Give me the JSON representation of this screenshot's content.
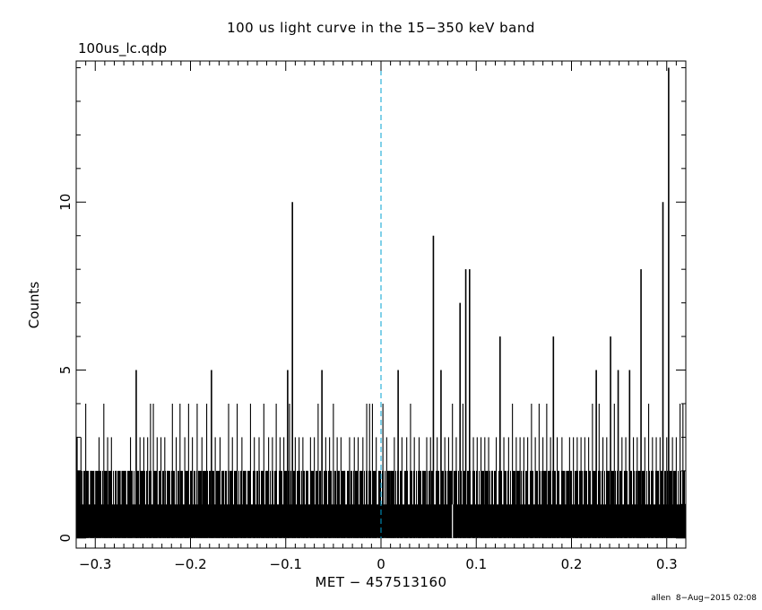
{
  "chart_data": {
    "type": "bar",
    "title": "100 us light curve in the 15−350 keV band",
    "subtitle": "100us_lc.qdp",
    "xlabel": "MET − 457513160",
    "ylabel": "Counts",
    "xlim": [
      -0.32,
      0.32
    ],
    "ylim": [
      -0.3,
      14.2
    ],
    "xticks": {
      "values": [
        -0.3,
        -0.2,
        -0.1,
        0,
        0.1,
        0.2,
        0.3
      ],
      "labels": [
        "−0.3",
        "−0.2",
        "−0.1",
        "0",
        "0.1",
        "0.2",
        "0.3"
      ]
    },
    "yticks": {
      "values": [
        0,
        5,
        10
      ],
      "labels": [
        "0",
        "5",
        "10"
      ]
    },
    "trigger_line": {
      "x": 0,
      "color": "#00a0d0",
      "style": "dashed"
    },
    "bar_color": "#000000",
    "baseline_level": 1,
    "spikes": [
      {
        "x": -0.319,
        "y": 3
      },
      {
        "x": -0.315,
        "y": 3
      },
      {
        "x": -0.31,
        "y": 4
      },
      {
        "x": -0.305,
        "y": 2
      },
      {
        "x": -0.3,
        "y": 2
      },
      {
        "x": -0.296,
        "y": 3
      },
      {
        "x": -0.291,
        "y": 4
      },
      {
        "x": -0.287,
        "y": 3
      },
      {
        "x": -0.283,
        "y": 3
      },
      {
        "x": -0.278,
        "y": 2
      },
      {
        "x": -0.273,
        "y": 2
      },
      {
        "x": -0.268,
        "y": 2
      },
      {
        "x": -0.263,
        "y": 3
      },
      {
        "x": -0.257,
        "y": 5
      },
      {
        "x": -0.253,
        "y": 3
      },
      {
        "x": -0.249,
        "y": 3
      },
      {
        "x": -0.245,
        "y": 3
      },
      {
        "x": -0.242,
        "y": 4
      },
      {
        "x": -0.239,
        "y": 4
      },
      {
        "x": -0.235,
        "y": 3
      },
      {
        "x": -0.231,
        "y": 3
      },
      {
        "x": -0.227,
        "y": 3
      },
      {
        "x": -0.224,
        "y": 2
      },
      {
        "x": -0.219,
        "y": 4
      },
      {
        "x": -0.215,
        "y": 3
      },
      {
        "x": -0.211,
        "y": 4
      },
      {
        "x": -0.206,
        "y": 3
      },
      {
        "x": -0.202,
        "y": 4
      },
      {
        "x": -0.198,
        "y": 3
      },
      {
        "x": -0.193,
        "y": 4
      },
      {
        "x": -0.188,
        "y": 3
      },
      {
        "x": -0.183,
        "y": 4
      },
      {
        "x": -0.178,
        "y": 5
      },
      {
        "x": -0.174,
        "y": 3
      },
      {
        "x": -0.169,
        "y": 3
      },
      {
        "x": -0.165,
        "y": 2
      },
      {
        "x": -0.16,
        "y": 4
      },
      {
        "x": -0.156,
        "y": 3
      },
      {
        "x": -0.151,
        "y": 4
      },
      {
        "x": -0.146,
        "y": 3
      },
      {
        "x": -0.142,
        "y": 2
      },
      {
        "x": -0.137,
        "y": 4
      },
      {
        "x": -0.133,
        "y": 3
      },
      {
        "x": -0.128,
        "y": 3
      },
      {
        "x": -0.123,
        "y": 4
      },
      {
        "x": -0.118,
        "y": 3
      },
      {
        "x": -0.114,
        "y": 3
      },
      {
        "x": -0.11,
        "y": 4
      },
      {
        "x": -0.106,
        "y": 3
      },
      {
        "x": -0.102,
        "y": 3
      },
      {
        "x": -0.098,
        "y": 5
      },
      {
        "x": -0.096,
        "y": 4
      },
      {
        "x": -0.093,
        "y": 10
      },
      {
        "x": -0.09,
        "y": 3
      },
      {
        "x": -0.086,
        "y": 3
      },
      {
        "x": -0.082,
        "y": 3
      },
      {
        "x": -0.078,
        "y": 2
      },
      {
        "x": -0.074,
        "y": 3
      },
      {
        "x": -0.07,
        "y": 3
      },
      {
        "x": -0.066,
        "y": 4
      },
      {
        "x": -0.062,
        "y": 5
      },
      {
        "x": -0.058,
        "y": 3
      },
      {
        "x": -0.054,
        "y": 3
      },
      {
        "x": -0.05,
        "y": 4
      },
      {
        "x": -0.046,
        "y": 3
      },
      {
        "x": -0.042,
        "y": 3
      },
      {
        "x": -0.038,
        "y": 2
      },
      {
        "x": -0.033,
        "y": 3
      },
      {
        "x": -0.028,
        "y": 3
      },
      {
        "x": -0.024,
        "y": 3
      },
      {
        "x": -0.019,
        "y": 3
      },
      {
        "x": -0.015,
        "y": 4
      },
      {
        "x": -0.012,
        "y": 4
      },
      {
        "x": -0.009,
        "y": 4
      },
      {
        "x": -0.005,
        "y": 3
      },
      {
        "x": 0.002,
        "y": 4
      },
      {
        "x": 0.006,
        "y": 3
      },
      {
        "x": 0.01,
        "y": 2
      },
      {
        "x": 0.014,
        "y": 3
      },
      {
        "x": 0.018,
        "y": 5
      },
      {
        "x": 0.022,
        "y": 3
      },
      {
        "x": 0.027,
        "y": 3
      },
      {
        "x": 0.031,
        "y": 4
      },
      {
        "x": 0.035,
        "y": 3
      },
      {
        "x": 0.04,
        "y": 3
      },
      {
        "x": 0.044,
        "y": 2
      },
      {
        "x": 0.048,
        "y": 3
      },
      {
        "x": 0.052,
        "y": 3
      },
      {
        "x": 0.055,
        "y": 9
      },
      {
        "x": 0.059,
        "y": 3
      },
      {
        "x": 0.063,
        "y": 5
      },
      {
        "x": 0.067,
        "y": 3
      },
      {
        "x": 0.071,
        "y": 3
      },
      {
        "x": 0.075,
        "y": 4
      },
      {
        "x": 0.079,
        "y": 3
      },
      {
        "x": 0.083,
        "y": 7
      },
      {
        "x": 0.086,
        "y": 4
      },
      {
        "x": 0.089,
        "y": 8
      },
      {
        "x": 0.093,
        "y": 8
      },
      {
        "x": 0.097,
        "y": 3
      },
      {
        "x": 0.101,
        "y": 3
      },
      {
        "x": 0.105,
        "y": 3
      },
      {
        "x": 0.109,
        "y": 3
      },
      {
        "x": 0.113,
        "y": 3
      },
      {
        "x": 0.117,
        "y": 2
      },
      {
        "x": 0.121,
        "y": 3
      },
      {
        "x": 0.125,
        "y": 6
      },
      {
        "x": 0.129,
        "y": 3
      },
      {
        "x": 0.134,
        "y": 3
      },
      {
        "x": 0.138,
        "y": 4
      },
      {
        "x": 0.142,
        "y": 3
      },
      {
        "x": 0.146,
        "y": 3
      },
      {
        "x": 0.15,
        "y": 3
      },
      {
        "x": 0.154,
        "y": 3
      },
      {
        "x": 0.158,
        "y": 4
      },
      {
        "x": 0.162,
        "y": 3
      },
      {
        "x": 0.166,
        "y": 4
      },
      {
        "x": 0.17,
        "y": 3
      },
      {
        "x": 0.174,
        "y": 4
      },
      {
        "x": 0.178,
        "y": 3
      },
      {
        "x": 0.181,
        "y": 6
      },
      {
        "x": 0.185,
        "y": 3
      },
      {
        "x": 0.19,
        "y": 3
      },
      {
        "x": 0.194,
        "y": 2
      },
      {
        "x": 0.198,
        "y": 3
      },
      {
        "x": 0.202,
        "y": 3
      },
      {
        "x": 0.206,
        "y": 3
      },
      {
        "x": 0.21,
        "y": 3
      },
      {
        "x": 0.214,
        "y": 3
      },
      {
        "x": 0.218,
        "y": 3
      },
      {
        "x": 0.222,
        "y": 4
      },
      {
        "x": 0.226,
        "y": 5
      },
      {
        "x": 0.229,
        "y": 4
      },
      {
        "x": 0.233,
        "y": 3
      },
      {
        "x": 0.237,
        "y": 3
      },
      {
        "x": 0.241,
        "y": 6
      },
      {
        "x": 0.245,
        "y": 4
      },
      {
        "x": 0.249,
        "y": 5
      },
      {
        "x": 0.253,
        "y": 3
      },
      {
        "x": 0.257,
        "y": 3
      },
      {
        "x": 0.261,
        "y": 5
      },
      {
        "x": 0.265,
        "y": 3
      },
      {
        "x": 0.269,
        "y": 3
      },
      {
        "x": 0.273,
        "y": 8
      },
      {
        "x": 0.277,
        "y": 3
      },
      {
        "x": 0.281,
        "y": 4
      },
      {
        "x": 0.285,
        "y": 3
      },
      {
        "x": 0.289,
        "y": 3
      },
      {
        "x": 0.293,
        "y": 3
      },
      {
        "x": 0.296,
        "y": 10
      },
      {
        "x": 0.3,
        "y": 3
      },
      {
        "x": 0.302,
        "y": 14
      },
      {
        "x": 0.306,
        "y": 3
      },
      {
        "x": 0.31,
        "y": 3
      },
      {
        "x": 0.314,
        "y": 4
      },
      {
        "x": 0.317,
        "y": 4
      }
    ],
    "gaps": [
      {
        "x": 0.075,
        "y": 0
      }
    ]
  },
  "footer": {
    "user": "allen",
    "date": "8−Aug−2015 02:08"
  }
}
